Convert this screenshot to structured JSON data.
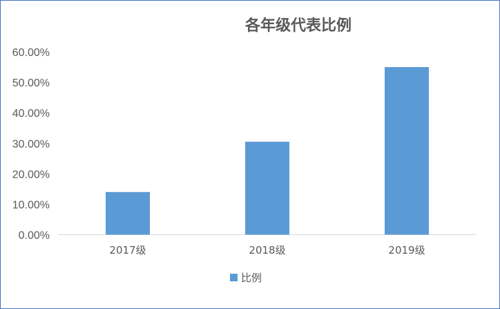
{
  "chart_data": {
    "type": "bar",
    "title": "各年级代表比例",
    "categories": [
      "2017级",
      "2018级",
      "2019级"
    ],
    "series": [
      {
        "name": "比例",
        "values": [
          0.14,
          0.305,
          0.55
        ]
      }
    ],
    "ylim": [
      0,
      0.6
    ],
    "yticks": [
      0,
      0.1,
      0.2,
      0.3,
      0.4,
      0.5,
      0.6
    ],
    "ytick_labels": [
      "0.00%",
      "10.00%",
      "20.00%",
      "30.00%",
      "40.00%",
      "50.00%",
      "60.00%"
    ],
    "grid": false,
    "legend_position": "bottom",
    "bar_color": "#5b9bd5"
  }
}
